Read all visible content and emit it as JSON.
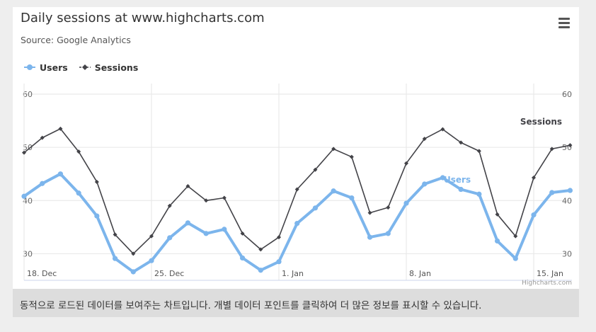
{
  "chart_data": {
    "type": "line",
    "title": "Daily sessions at www.highcharts.com",
    "subtitle": "Source: Google Analytics",
    "x_tick_labels": [
      "18. Dec",
      "25. Dec",
      "1. Jan",
      "8. Jan",
      "15. Jan"
    ],
    "x_tick_dates": [
      "2013-12-18",
      "2013-12-25",
      "2014-01-01",
      "2014-01-08",
      "2014-01-15"
    ],
    "x_range": [
      "2013-12-18",
      "2014-01-17"
    ],
    "ylim": [
      25,
      62
    ],
    "y_ticks": [
      30,
      40,
      50,
      60
    ],
    "grid": true,
    "legend_position": "top-left",
    "series_end_labels": true,
    "credits": "Highcharts.com",
    "series": [
      {
        "name": "Users",
        "color": "#7cb5ec",
        "marker": "circle",
        "values": [
          40.8,
          43.2,
          45.0,
          41.4,
          37.1,
          29.1,
          26.6,
          28.7,
          33.0,
          35.8,
          33.8,
          34.6,
          29.2,
          26.9,
          28.5,
          35.7,
          38.6,
          41.8,
          40.5,
          33.1,
          33.8,
          39.5,
          43.1,
          44.3,
          42.1,
          41.2,
          32.4,
          29.1,
          37.3,
          41.5,
          41.9
        ]
      },
      {
        "name": "Sessions",
        "color": "#434348",
        "marker": "diamond",
        "values": [
          49.0,
          51.8,
          53.5,
          49.2,
          43.5,
          33.6,
          30.0,
          33.3,
          39.0,
          42.7,
          40.0,
          40.5,
          33.8,
          30.8,
          33.1,
          42.1,
          45.8,
          49.7,
          48.2,
          37.7,
          38.7,
          47.0,
          51.6,
          53.4,
          50.9,
          49.3,
          37.4,
          33.3,
          44.3,
          49.7,
          50.4
        ]
      }
    ]
  },
  "caption": "동적으로 로드된 데이터를 보여주는 차트입니다. 개별 데이터 포인트를 클릭하여 더 많은 정보를 표시할 수 있습니다.",
  "menu_icon": "hamburger-menu-icon"
}
